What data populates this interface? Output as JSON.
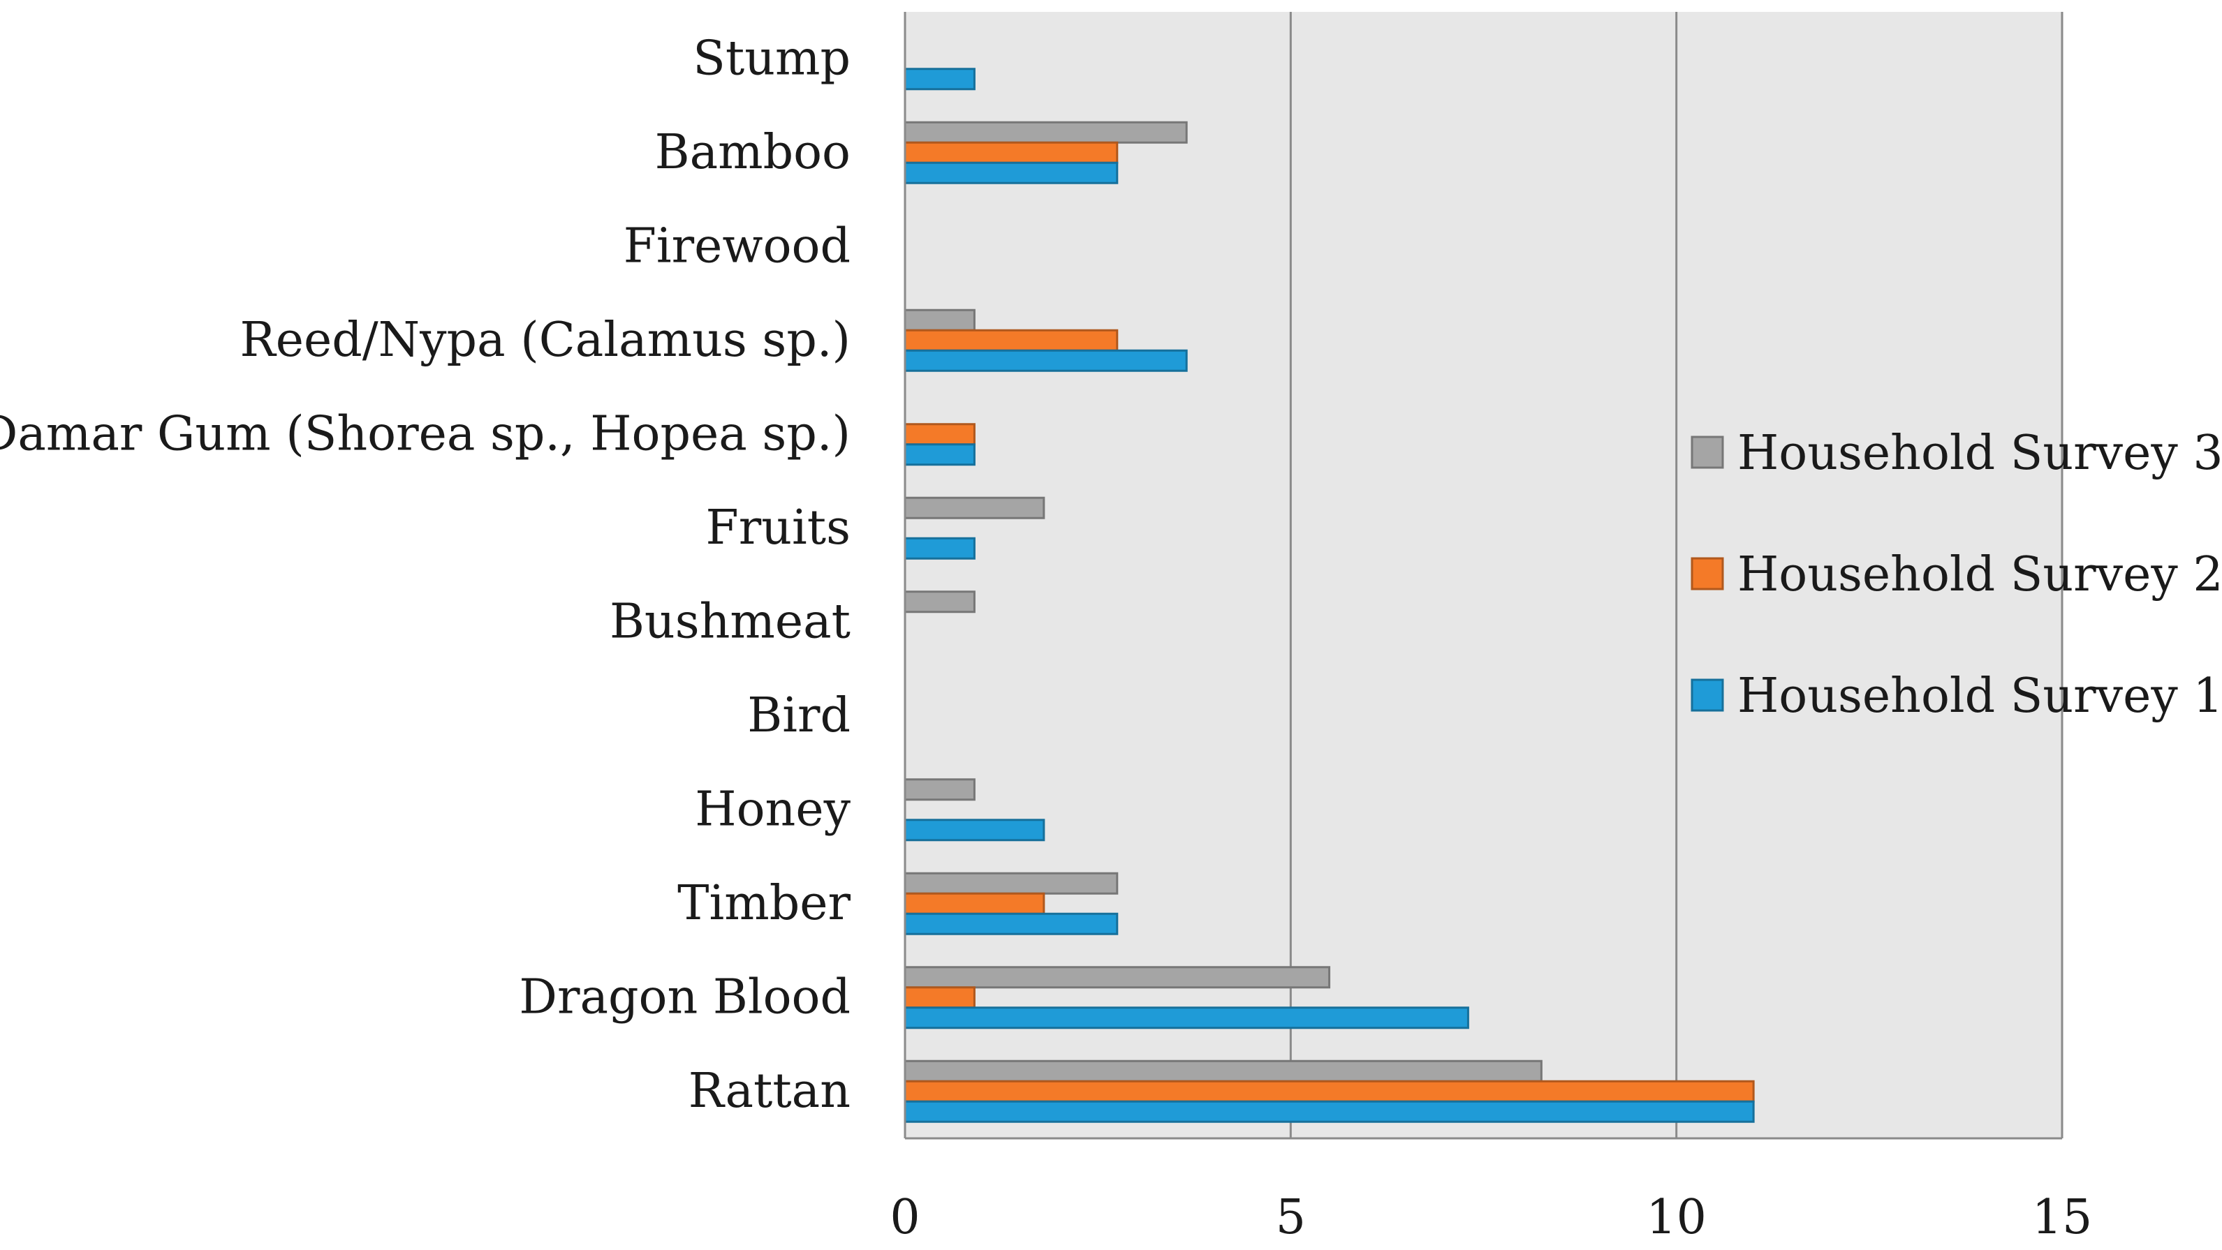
{
  "chart_data": {
    "type": "bar",
    "orientation": "horizontal",
    "title": "",
    "xlabel": "",
    "ylabel": "",
    "xlim": [
      0,
      15
    ],
    "x_ticks": [
      0,
      5,
      10,
      15
    ],
    "x_tick_labels": [
      "0",
      "5",
      "10",
      "15"
    ],
    "grid": true,
    "legend_position": "right",
    "categories": [
      "Rattan",
      "Dragon Blood",
      "Timber",
      "Honey",
      "Bird",
      "Bushmeat",
      "Fruits",
      "Damar Gum (Shorea sp., Hopea sp.)",
      "Reed/Nypa (Calamus sp.)",
      "Firewood",
      "Bamboo",
      "Stump"
    ],
    "series": [
      {
        "name": "Household Survey 1",
        "color": "#1f9bd7",
        "values": [
          11.0,
          7.3,
          2.75,
          1.8,
          0,
          0,
          0.9,
          0.9,
          3.65,
          0,
          2.75,
          0.9
        ]
      },
      {
        "name": "Household Survey 2",
        "color": "#f47a28",
        "values": [
          11.0,
          0.9,
          1.8,
          0,
          0,
          0,
          0,
          0.9,
          2.75,
          0,
          2.75,
          0
        ]
      },
      {
        "name": "Household Survey 3",
        "color": "#a5a5a5",
        "values": [
          8.25,
          5.5,
          2.75,
          0.9,
          0,
          0.9,
          1.8,
          0,
          0.9,
          0,
          3.65,
          0
        ]
      }
    ]
  }
}
